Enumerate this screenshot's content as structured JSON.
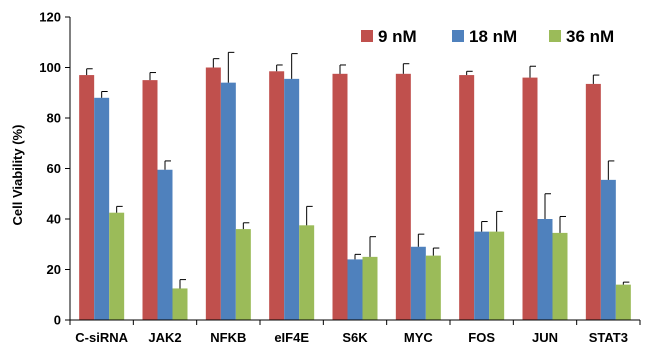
{
  "chart_data": {
    "type": "bar",
    "title": "",
    "xlabel": "",
    "ylabel": "Cell Viability (%)",
    "ylim": [
      0,
      120
    ],
    "yticks": [
      0,
      20,
      40,
      60,
      80,
      100,
      120
    ],
    "categories": [
      "C-siRNA",
      "JAK2",
      "NFKB",
      "eIF4E",
      "S6K",
      "MYC",
      "FOS",
      "JUN",
      "STAT3"
    ],
    "legend_position": "top-right",
    "grid": false,
    "series": [
      {
        "name": "9 nM",
        "color": "#C0504D",
        "values": [
          97,
          95,
          100,
          98.5,
          97.5,
          97.5,
          97,
          96,
          93.5
        ],
        "errors": [
          2.5,
          3,
          3.5,
          2.5,
          3.5,
          4,
          1.5,
          4.5,
          3.5
        ]
      },
      {
        "name": "18 nM",
        "color": "#4F81BD",
        "values": [
          88,
          59.5,
          94,
          95.5,
          24,
          29,
          35,
          40,
          55.5
        ],
        "errors": [
          2.5,
          3.5,
          12,
          10,
          2,
          5,
          4,
          10,
          7.5
        ]
      },
      {
        "name": "36 nM",
        "color": "#9BBB59",
        "values": [
          42.5,
          12.5,
          36,
          37.5,
          25,
          25.5,
          35,
          34.5,
          14
        ],
        "errors": [
          2.5,
          3.5,
          2.5,
          7.5,
          8,
          3,
          8,
          6.5,
          1
        ]
      }
    ]
  }
}
